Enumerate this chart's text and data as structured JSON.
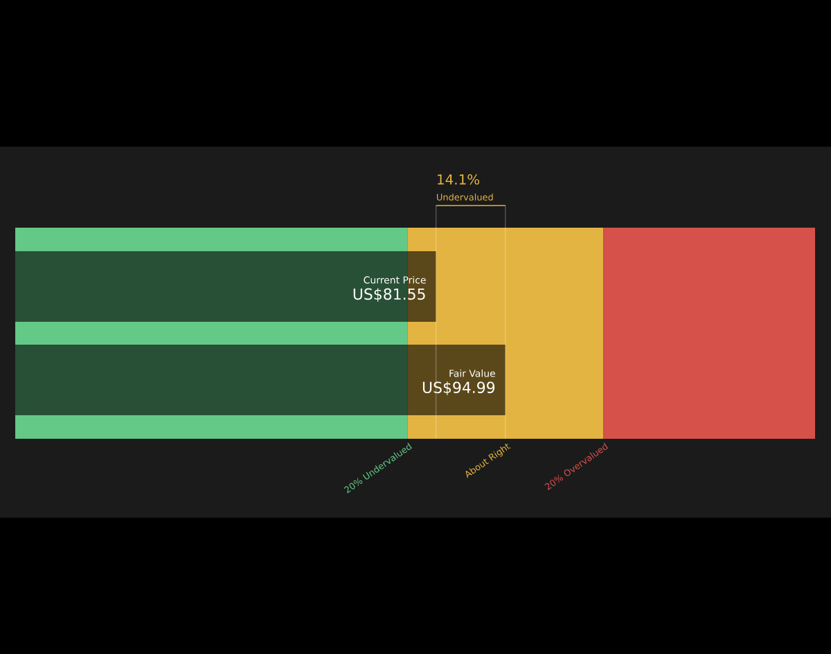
{
  "chart_data": {
    "type": "bar",
    "orientation": "horizontal",
    "categories": [
      "Current Price",
      "Fair Value"
    ],
    "values": [
      81.55,
      94.99
    ],
    "value_labels": [
      "US$81.55",
      "US$94.99"
    ],
    "color": "#000000",
    "xlim": [
      0,
      155
    ],
    "bands": [
      {
        "axis": "x",
        "from": 0,
        "to": 75.99,
        "label": "20% Undervalued",
        "color": "#64c887"
      },
      {
        "axis": "x",
        "from": 75.99,
        "to": 113.99,
        "label": "About Right",
        "color": "#e3b442"
      },
      {
        "axis": "x",
        "from": 113.99,
        "to": 155,
        "label": "20% Overvalued",
        "color": "#d6514a"
      }
    ],
    "ref_lines": [
      {
        "axis": "x",
        "value": 81.55,
        "color": "#ffffff"
      },
      {
        "axis": "x",
        "value": 94.99,
        "color": "#ffffff"
      }
    ],
    "annotations": [
      "14.1%",
      "Undervalued"
    ]
  }
}
